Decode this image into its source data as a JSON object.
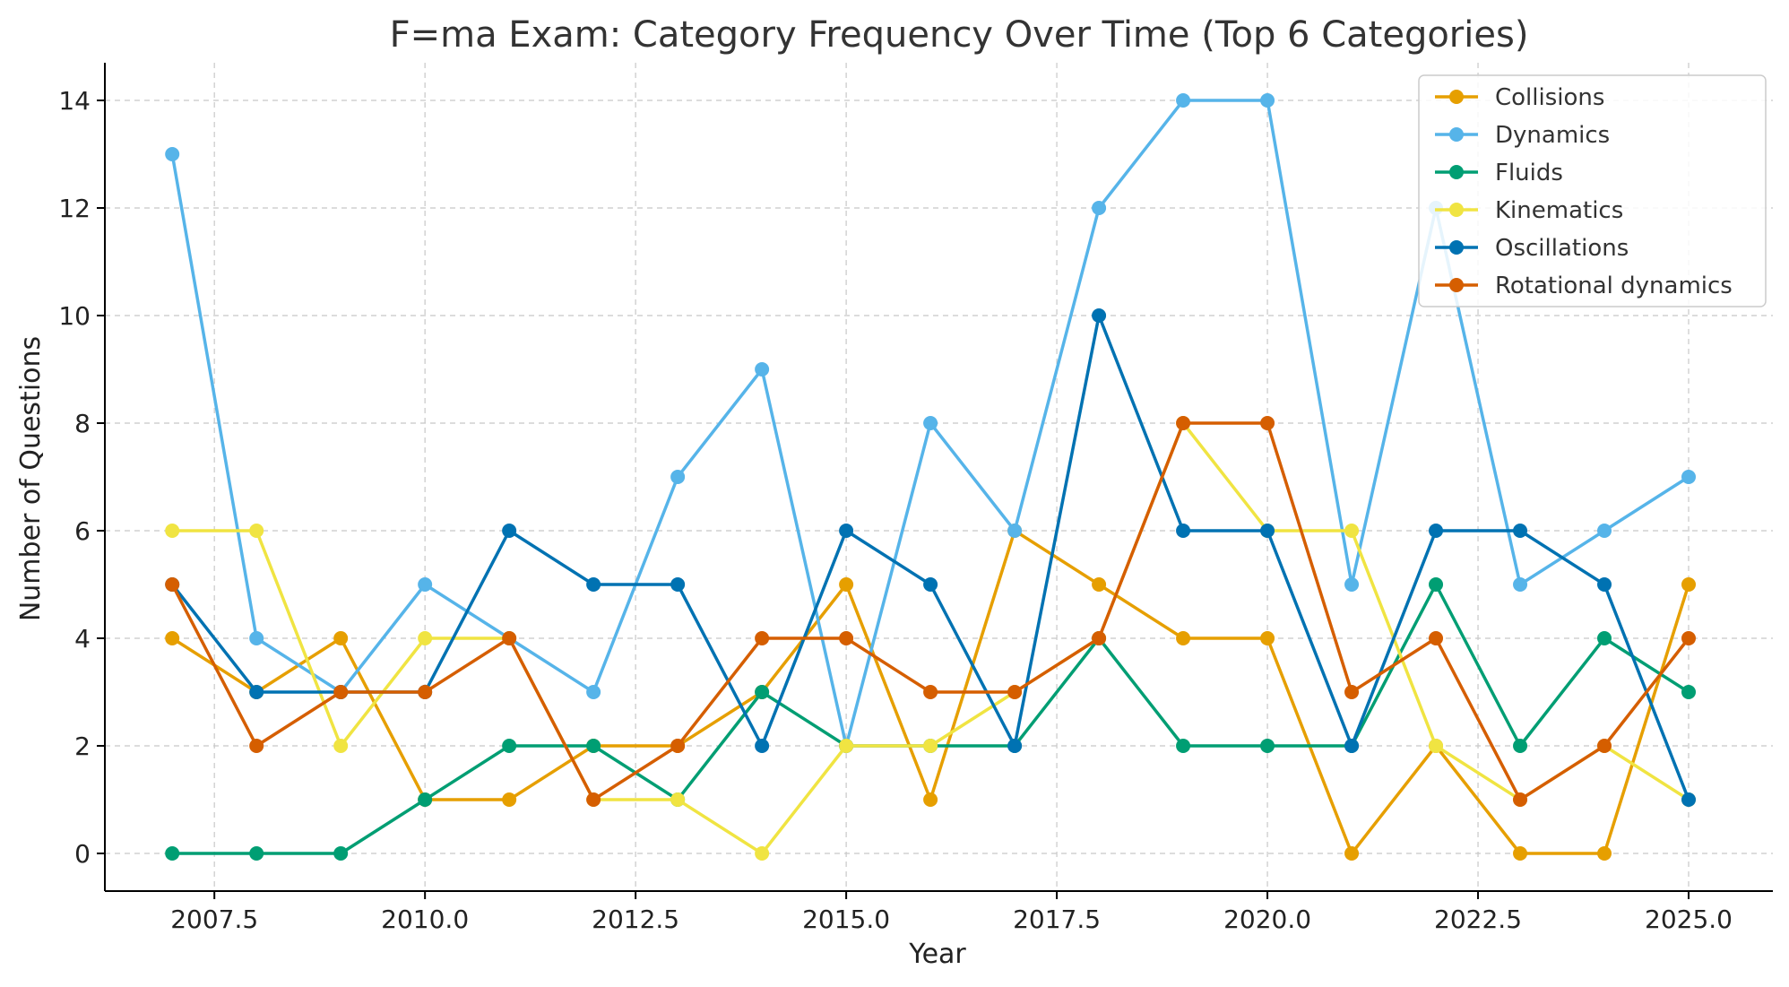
{
  "chart_data": {
    "type": "line",
    "title": "F=ma Exam: Category Frequency Over Time (Top 6 Categories)",
    "xlabel": "Year",
    "ylabel": "Number of Questions",
    "xlim": [
      2006.2,
      2026.0
    ],
    "ylim": [
      -0.7,
      14.7
    ],
    "x_ticks": [
      2007.5,
      2010.0,
      2012.5,
      2015.0,
      2017.5,
      2020.0,
      2022.5,
      2025.0
    ],
    "x_tick_labels": [
      "2007.5",
      "2010.0",
      "2012.5",
      "2015.0",
      "2017.5",
      "2020.0",
      "2022.5",
      "2025.0"
    ],
    "y_ticks": [
      0,
      2,
      4,
      6,
      8,
      10,
      12,
      14
    ],
    "y_tick_labels": [
      "0",
      "2",
      "4",
      "6",
      "8",
      "10",
      "12",
      "14"
    ],
    "grid": true,
    "legend_position": "top-right",
    "x": [
      2007,
      2008,
      2009,
      2010,
      2011,
      2012,
      2013,
      2014,
      2015,
      2016,
      2017,
      2018,
      2019,
      2020,
      2021,
      2022,
      2023,
      2024,
      2025
    ],
    "series": [
      {
        "name": "Collisions",
        "color": "#E69F00",
        "values": [
          4,
          3,
          4,
          1,
          1,
          2,
          2,
          3,
          5,
          1,
          6,
          5,
          4,
          4,
          0,
          2,
          0,
          0,
          5
        ]
      },
      {
        "name": "Dynamics",
        "color": "#56B4E9",
        "values": [
          13,
          4,
          3,
          5,
          4,
          3,
          7,
          9,
          2,
          8,
          6,
          12,
          14,
          14,
          5,
          12,
          5,
          6,
          7
        ]
      },
      {
        "name": "Fluids",
        "color": "#009E73",
        "values": [
          0,
          0,
          0,
          1,
          2,
          2,
          1,
          3,
          2,
          2,
          2,
          4,
          2,
          2,
          2,
          5,
          2,
          4,
          3
        ]
      },
      {
        "name": "Kinematics",
        "color": "#F0E442",
        "values": [
          6,
          6,
          2,
          4,
          4,
          1,
          1,
          0,
          2,
          2,
          3,
          4,
          8,
          6,
          6,
          2,
          1,
          2,
          1
        ]
      },
      {
        "name": "Oscillations",
        "color": "#0072B2",
        "values": [
          5,
          3,
          3,
          3,
          6,
          5,
          5,
          2,
          6,
          5,
          2,
          10,
          6,
          6,
          2,
          6,
          6,
          5,
          1
        ]
      },
      {
        "name": "Rotational dynamics",
        "color": "#D55E00",
        "values": [
          5,
          2,
          3,
          3,
          4,
          1,
          2,
          4,
          4,
          3,
          3,
          4,
          8,
          8,
          3,
          4,
          1,
          2,
          4
        ]
      }
    ]
  }
}
